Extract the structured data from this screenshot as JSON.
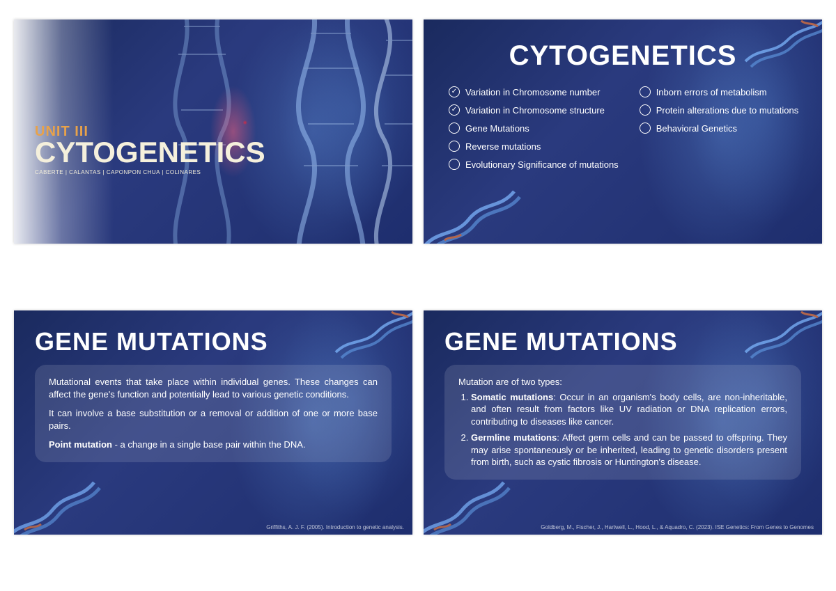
{
  "colors": {
    "bg_dark": "#1a2a5e",
    "bg_mid": "#2a3a7e",
    "accent_orange": "#e8a24a",
    "title_cream": "#f5f0dc",
    "text_white": "#ffffff",
    "box_bg": "rgba(255,255,255,0.12)",
    "helix_blue": "#7fb8ff",
    "helix_orange": "#e8773a"
  },
  "slide1": {
    "unit_label": "UNIT III",
    "title": "CYTOGENETICS",
    "authors": "CABERTE | CALANTAS | CAPONPON   CHUA | COLINARES"
  },
  "slide2": {
    "title": "CYTOGENETICS",
    "left_items": [
      {
        "checked": true,
        "label": "Variation in Chromosome number"
      },
      {
        "checked": true,
        "label": "Variation in Chromosome structure"
      },
      {
        "checked": false,
        "label": "Gene Mutations"
      },
      {
        "checked": false,
        "label": "Reverse mutations"
      },
      {
        "checked": false,
        "label": "Evolutionary Significance of mutations"
      }
    ],
    "right_items": [
      {
        "checked": false,
        "label": "Inborn errors of metabolism"
      },
      {
        "checked": false,
        "label": "Protein alterations due to mutations"
      },
      {
        "checked": false,
        "label": "Behavioral Genetics"
      }
    ]
  },
  "slide3": {
    "title": "GENE MUTATIONS",
    "p1": "Mutational events that take place within individual genes. These changes can affect the gene's function and potentially lead to various genetic conditions.",
    "p2": "It can involve a base substitution or a removal or addition of one or more base pairs.",
    "p3_bold": "Point mutation",
    "p3_rest": " - a change in a single base pair within the DNA.",
    "citation": "Griffiths, A. J. F. (2005). Introduction to genetic analysis."
  },
  "slide4": {
    "title": "GENE MUTATIONS",
    "intro": "Mutation are of two types:",
    "item1_bold": "Somatic mutations",
    "item1_rest": ": Occur in an organism's body cells, are non-inheritable, and often result from factors like UV radiation or DNA replication errors, contributing to diseases like cancer.",
    "item2_bold": "Germline mutations",
    "item2_rest": ": Affect germ cells and can be passed to offspring. They may arise spontaneously or be inherited, leading to genetic disorders present from birth, such as cystic fibrosis or Huntington's disease.",
    "citation": "Goldberg, M., Fischer, J., Hartwell, L., Hood, L., & Aquadro, C. (2023). ISE Genetics: From Genes to Genomes"
  }
}
